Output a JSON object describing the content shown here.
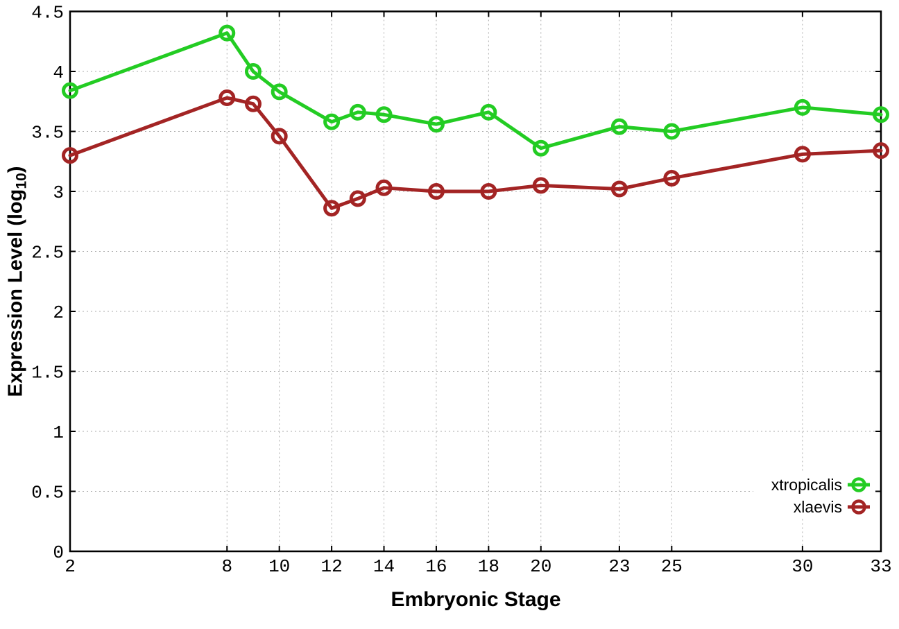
{
  "axes": {
    "x_title": "Embryonic Stage",
    "y_title_prefix": "Expression Level (log",
    "y_title_sub": "10",
    "y_title_suffix": ")"
  },
  "chart_data": {
    "type": "line",
    "title": "",
    "xlabel": "Embryonic Stage",
    "ylabel": "Expression Level (log10)",
    "x": [
      2,
      8,
      9,
      10,
      12,
      13,
      14,
      16,
      18,
      20,
      23,
      25,
      30,
      33
    ],
    "series": [
      {
        "name": "xtropicalis",
        "color": "#23cc23",
        "values": [
          3.84,
          4.32,
          4.0,
          3.83,
          3.58,
          3.66,
          3.64,
          3.56,
          3.66,
          3.36,
          3.54,
          3.5,
          3.7,
          3.64
        ]
      },
      {
        "name": "xlaevis",
        "color": "#a32424",
        "values": [
          3.3,
          3.78,
          3.73,
          3.46,
          2.86,
          2.94,
          3.03,
          3.0,
          3.0,
          3.05,
          3.02,
          3.11,
          3.31,
          3.34
        ]
      }
    ],
    "x_ticks": [
      2,
      8,
      10,
      12,
      14,
      16,
      18,
      20,
      23,
      25,
      30,
      33
    ],
    "y_ticks": [
      0,
      0.5,
      1,
      1.5,
      2,
      2.5,
      3,
      3.5,
      4,
      4.5
    ],
    "xlim": [
      2,
      33
    ],
    "ylim": [
      0,
      4.5
    ],
    "grid": true,
    "marker": "open-circle",
    "legend_position": "inside-bottom-right",
    "style": {
      "grid_color": "#aaaaaa",
      "axis_color": "#000000",
      "line_width": 5,
      "marker_radius": 9.5,
      "marker_stroke": 5
    }
  }
}
